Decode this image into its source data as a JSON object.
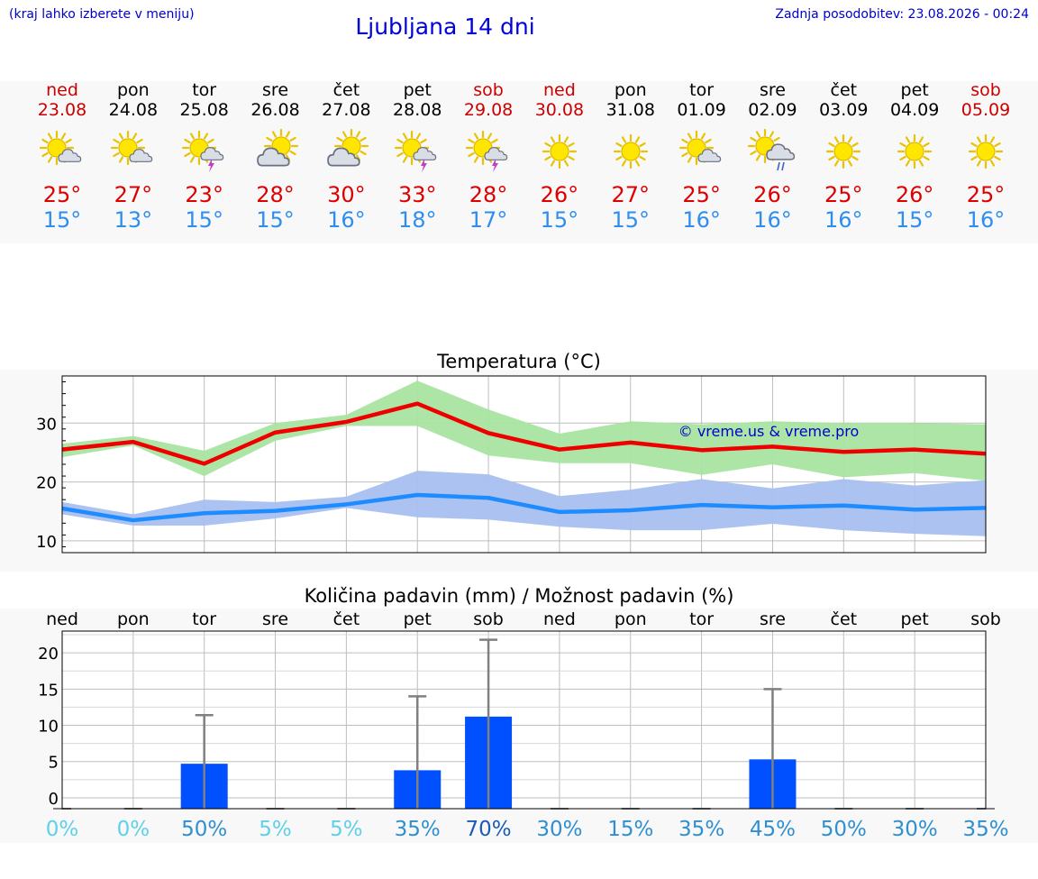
{
  "header": {
    "hint": "(kraj lahko izberete v meniju)",
    "title": "Ljubljana 14 dni",
    "updated": "Zadnja posodobitev: 23.08.2026 - 00:24"
  },
  "colors": {
    "weekend": "#cc0000",
    "weekday": "#000000",
    "tmax": "#dd0000",
    "tmin": "#2e8ef0",
    "rain_bar": "#0050ff",
    "maxband": "#a8e4a0",
    "minband": "#a8c0f0"
  },
  "days": [
    {
      "name": "ned",
      "date": "23.08",
      "weekend": true,
      "icon": "sun-cloud-icon",
      "tmax": "25°",
      "tmin": "15°"
    },
    {
      "name": "pon",
      "date": "24.08",
      "weekend": false,
      "icon": "sun-cloud-icon",
      "tmax": "27°",
      "tmin": "13°"
    },
    {
      "name": "tor",
      "date": "25.08",
      "weekend": false,
      "icon": "sun-thunder-icon",
      "tmax": "23°",
      "tmin": "15°"
    },
    {
      "name": "sre",
      "date": "26.08",
      "weekend": false,
      "icon": "cloud-sun-icon",
      "tmax": "28°",
      "tmin": "15°"
    },
    {
      "name": "čet",
      "date": "27.08",
      "weekend": false,
      "icon": "cloud-sun-icon",
      "tmax": "30°",
      "tmin": "16°"
    },
    {
      "name": "pet",
      "date": "28.08",
      "weekend": false,
      "icon": "sun-thunder-icon",
      "tmax": "33°",
      "tmin": "18°"
    },
    {
      "name": "sob",
      "date": "29.08",
      "weekend": true,
      "icon": "sun-thunder-icon",
      "tmax": "28°",
      "tmin": "17°"
    },
    {
      "name": "ned",
      "date": "30.08",
      "weekend": true,
      "icon": "sun-icon",
      "tmax": "26°",
      "tmin": "15°"
    },
    {
      "name": "pon",
      "date": "31.08",
      "weekend": false,
      "icon": "sun-icon",
      "tmax": "27°",
      "tmin": "15°"
    },
    {
      "name": "tor",
      "date": "01.09",
      "weekend": false,
      "icon": "sun-cloud-icon",
      "tmax": "25°",
      "tmin": "16°"
    },
    {
      "name": "sre",
      "date": "02.09",
      "weekend": false,
      "icon": "sun-rain-icon",
      "tmax": "26°",
      "tmin": "16°"
    },
    {
      "name": "čet",
      "date": "03.09",
      "weekend": false,
      "icon": "sun-icon",
      "tmax": "25°",
      "tmin": "16°"
    },
    {
      "name": "pet",
      "date": "04.09",
      "weekend": false,
      "icon": "sun-icon",
      "tmax": "26°",
      "tmin": "15°"
    },
    {
      "name": "sob",
      "date": "05.09",
      "weekend": true,
      "icon": "sun-icon",
      "tmax": "25°",
      "tmin": "16°"
    }
  ],
  "chart_data": [
    {
      "type": "line",
      "title": "Temperatura (°C)",
      "watermark": "© vreme.us & vreme.pro",
      "ylim": [
        8,
        38
      ],
      "yticks": [
        10,
        20,
        30
      ],
      "grid": true,
      "x": [
        0,
        1,
        2,
        3,
        4,
        5,
        6,
        7,
        8,
        9,
        10,
        11,
        12,
        13
      ],
      "series": [
        {
          "color": "#ee0000",
          "values": [
            25.5,
            26.8,
            23.1,
            28.4,
            30.2,
            33.3,
            28.3,
            25.5,
            26.7,
            25.4,
            26.0,
            25.1,
            25.5,
            24.8
          ],
          "band_low": [
            24.2,
            26.2,
            21.0,
            27.0,
            29.5,
            29.5,
            24.5,
            23.2,
            23.2,
            21.2,
            23.0,
            20.8,
            21.5,
            20.2
          ],
          "band_high": [
            26.5,
            27.8,
            25.3,
            30.0,
            31.4,
            37.2,
            32.3,
            28.2,
            30.3,
            29.8,
            30.3,
            30.0,
            30.0,
            29.8
          ]
        },
        {
          "color": "#1e8cff",
          "values": [
            15.5,
            13.5,
            14.7,
            15.1,
            16.2,
            17.8,
            17.3,
            14.9,
            15.2,
            16.1,
            15.7,
            16.0,
            15.3,
            15.6
          ],
          "band_low": [
            14.5,
            12.6,
            12.6,
            13.8,
            15.6,
            14.0,
            13.6,
            12.4,
            11.8,
            11.8,
            12.9,
            11.8,
            11.2,
            10.8
          ],
          "band_high": [
            16.6,
            14.5,
            17.0,
            16.6,
            17.5,
            21.9,
            21.3,
            17.6,
            18.7,
            20.5,
            18.9,
            20.5,
            19.4,
            20.3
          ]
        }
      ]
    },
    {
      "type": "bar",
      "title": "Količina padavin (mm) / Možnost padavin (%)",
      "categories": [
        "ned",
        "pon",
        "tor",
        "sre",
        "čet",
        "pet",
        "sob",
        "ned",
        "pon",
        "tor",
        "sre",
        "čet",
        "pet",
        "sob"
      ],
      "ylim": [
        -1.5,
        23
      ],
      "yticks": [
        0,
        5,
        10,
        15,
        20
      ],
      "grid": true,
      "series": [
        {
          "values": [
            0,
            0,
            4.7,
            0,
            0,
            3.8,
            11.2,
            0,
            0,
            0,
            5.3,
            0,
            0,
            0
          ],
          "error_max": [
            0,
            0,
            11.4,
            0,
            0,
            14.0,
            21.8,
            0,
            0,
            0,
            15.0,
            0,
            0,
            0
          ]
        }
      ],
      "probability": [
        "0%",
        "0%",
        "50%",
        "5%",
        "5%",
        "35%",
        "70%",
        "30%",
        "15%",
        "35%",
        "45%",
        "50%",
        "30%",
        "35%"
      ],
      "probability_colors": [
        "#5fd0e8",
        "#5fd0e8",
        "#2f8fd0",
        "#5fd0e8",
        "#5fd0e8",
        "#2f8fd0",
        "#1b5cb8",
        "#2f8fd0",
        "#2f8fd0",
        "#2f8fd0",
        "#2f8fd0",
        "#2f8fd0",
        "#2f8fd0",
        "#2f8fd0"
      ]
    }
  ]
}
